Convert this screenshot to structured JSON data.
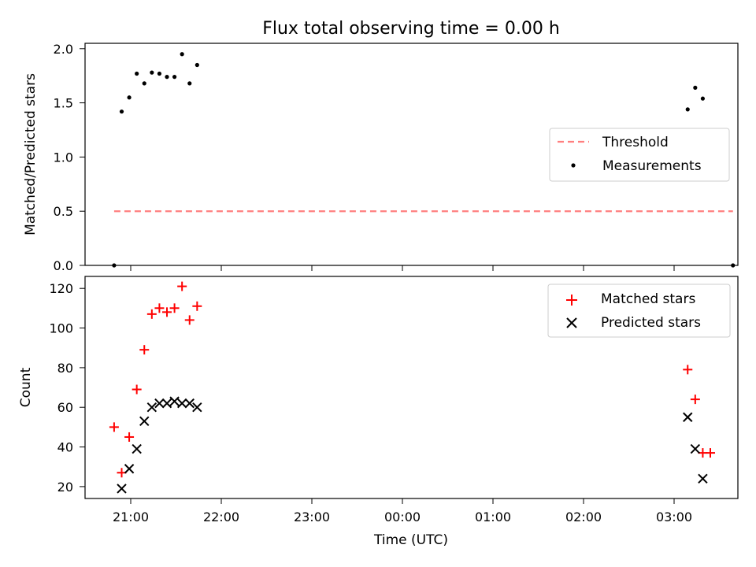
{
  "title": "Flux total observing time = 0.00 h",
  "chart_data": [
    {
      "type": "scatter",
      "ylabel": "Matched/Predicted stars",
      "xlim": [
        "20:30",
        "03:45"
      ],
      "ylim": [
        0,
        2.05
      ],
      "yticks": [
        "0.0",
        "0.5",
        "1.0",
        "1.5",
        "2.0"
      ],
      "legend_position": "center-right",
      "grid": false,
      "series": [
        {
          "name": "Threshold",
          "kind": "dashed-line",
          "color": "#ff7f7f",
          "points": [
            [
              "20:49",
              0.5
            ],
            [
              "03:39",
              0.5
            ]
          ]
        },
        {
          "name": "Measurements",
          "kind": "dot",
          "color": "#000000",
          "points": [
            [
              "20:49",
              0.0
            ],
            [
              "20:54",
              1.42
            ],
            [
              "20:59",
              1.55
            ],
            [
              "21:04",
              1.77
            ],
            [
              "21:09",
              1.68
            ],
            [
              "21:14",
              1.78
            ],
            [
              "21:19",
              1.77
            ],
            [
              "21:24",
              1.74
            ],
            [
              "21:29",
              1.74
            ],
            [
              "21:34",
              1.95
            ],
            [
              "21:39",
              1.68
            ],
            [
              "21:44",
              1.85
            ],
            [
              "03:09",
              1.44
            ],
            [
              "03:14",
              1.64
            ],
            [
              "03:19",
              1.54
            ],
            [
              "03:39",
              0.0
            ]
          ]
        }
      ]
    },
    {
      "type": "scatter",
      "xlabel": "Time (UTC)",
      "ylabel": "Count",
      "xlim": [
        "20:30",
        "03:45"
      ],
      "ylim": [
        14,
        126
      ],
      "yticks": [
        "20",
        "40",
        "60",
        "80",
        "100",
        "120"
      ],
      "xticks": [
        "21:00",
        "22:00",
        "23:00",
        "00:00",
        "01:00",
        "02:00",
        "03:00"
      ],
      "legend_position": "top-right",
      "grid": false,
      "series": [
        {
          "name": "Matched stars",
          "kind": "plus",
          "color": "#ff0000",
          "points": [
            [
              "20:49",
              50
            ],
            [
              "20:54",
              27
            ],
            [
              "20:59",
              45
            ],
            [
              "21:04",
              69
            ],
            [
              "21:09",
              89
            ],
            [
              "21:14",
              107
            ],
            [
              "21:19",
              110
            ],
            [
              "21:24",
              108
            ],
            [
              "21:29",
              110
            ],
            [
              "21:34",
              121
            ],
            [
              "21:39",
              104
            ],
            [
              "21:44",
              111
            ],
            [
              "03:09",
              79
            ],
            [
              "03:14",
              64
            ],
            [
              "03:19",
              37
            ],
            [
              "03:24",
              37
            ]
          ]
        },
        {
          "name": "Predicted stars",
          "kind": "x",
          "color": "#000000",
          "points": [
            [
              "20:54",
              19
            ],
            [
              "20:59",
              29
            ],
            [
              "21:04",
              39
            ],
            [
              "21:09",
              53
            ],
            [
              "21:14",
              60
            ],
            [
              "21:19",
              62
            ],
            [
              "21:24",
              62
            ],
            [
              "21:29",
              63
            ],
            [
              "21:34",
              62
            ],
            [
              "21:39",
              62
            ],
            [
              "21:44",
              60
            ],
            [
              "03:09",
              55
            ],
            [
              "03:14",
              39
            ],
            [
              "03:19",
              24
            ]
          ]
        }
      ]
    }
  ]
}
